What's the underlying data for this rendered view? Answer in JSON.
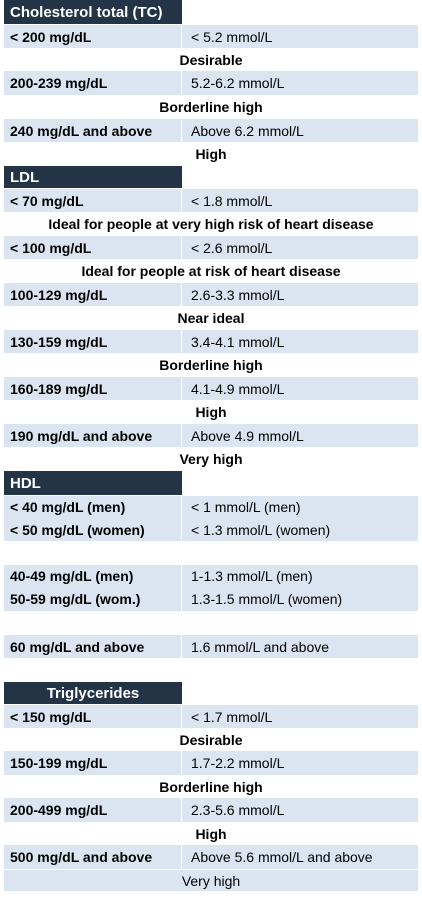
{
  "tc": {
    "header": "Cholesterol total (TC)",
    "rows": [
      {
        "mg": "< 200 mg/dL",
        "mmol": "< 5.2 mmol/L",
        "label": "Desirable"
      },
      {
        "mg": "200-239 mg/dL",
        "mmol": "5.2-6.2 mmol/L",
        "label": "Borderline high"
      },
      {
        "mg": "240 mg/dL and above",
        "mmol": "Above 6.2 mmol/L",
        "label": "High"
      }
    ]
  },
  "ldl": {
    "header": "LDL",
    "rows": [
      {
        "mg": "< 70 mg/dL",
        "mmol": "< 1.8 mmol/L",
        "label": "Ideal for people at very high risk of heart disease"
      },
      {
        "mg": "< 100 mg/dL",
        "mmol": "< 2.6 mmol/L",
        "label": "Ideal for people at risk of heart disease"
      },
      {
        "mg": "100-129 mg/dL",
        "mmol": "2.6-3.3 mmol/L",
        "label": "Near ideal"
      },
      {
        "mg": "130-159 mg/dL",
        "mmol": "3.4-4.1 mmol/L",
        "label": "Borderline high"
      },
      {
        "mg": "160-189 mg/dL",
        "mmol": "4.1-4.9 mmol/L",
        "label": "High"
      },
      {
        "mg": "190 mg/dL and above",
        "mmol": "Above 4.9 mmol/L",
        "label": "Very high"
      }
    ]
  },
  "hdl": {
    "header": "HDL",
    "rows": [
      {
        "mg1": "< 40 mg/dL (men)",
        "mg2": "< 50 mg/dL (women)",
        "mmol1": "< 1 mmol/L (men)",
        "mmol2": "< 1.3 mmol/L (women)"
      },
      {
        "mg1": "40-49 mg/dL (men)",
        "mg2": "50-59 mg/dL (wom.)",
        "mmol1": "1-1.3 mmol/L (men)",
        "mmol2": "1.3-1.5 mmol/L (women)"
      },
      {
        "mg": "60 mg/dL and above",
        "mmol": "1.6 mmol/L and above"
      }
    ]
  },
  "tg": {
    "header": "Triglycerides",
    "rows": [
      {
        "mg": "< 150 mg/dL",
        "mmol": "< 1.7 mmol/L",
        "label": "Desirable"
      },
      {
        "mg": "150-199 mg/dL",
        "mmol": "1.7-2.2 mmol/L",
        "label": "Borderline high"
      },
      {
        "mg": "200-499 mg/dL",
        "mmol": "2.3-5.6 mmol/L",
        "label": "High"
      },
      {
        "mg": "500 mg/dL and above",
        "mmol": "Above 5.6 mmol/L and above",
        "label": "Very high"
      }
    ]
  },
  "colors": {
    "header_bg": "#243447",
    "row_bg": "#dbe5f1",
    "alt_bg": "#ffffff"
  }
}
